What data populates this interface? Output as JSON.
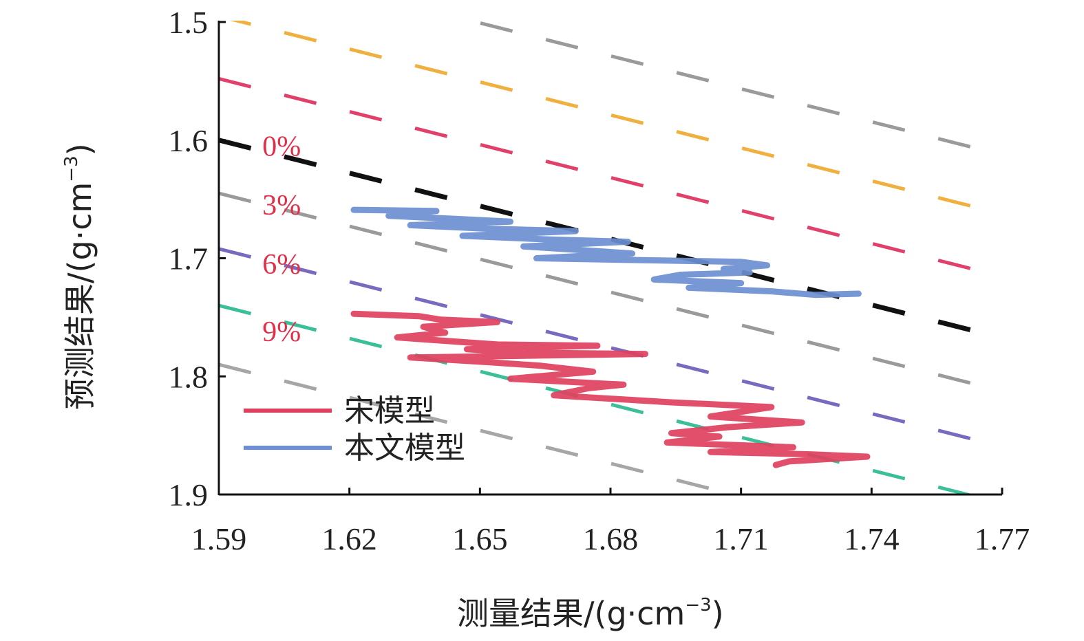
{
  "chart_data": {
    "type": "line",
    "xlabel": "测量结果/(g·cm",
    "xlabel_sup": "−3",
    "xlabel_end": ")",
    "ylabel": "预测结果/(g·cm",
    "ylabel_sup": "−3",
    "ylabel_end": ")",
    "xlim": [
      1.59,
      1.77
    ],
    "ylim": [
      1.5,
      1.9
    ],
    "y_inverted": true,
    "x_ticks": [
      "1.59",
      "1.62",
      "1.65",
      "1.68",
      "1.71",
      "1.74",
      "1.77"
    ],
    "y_ticks": [
      "1.5",
      "1.6",
      "1.7",
      "1.8",
      "1.9"
    ],
    "grid": false,
    "legend_position": "bottom-left",
    "legend": [
      {
        "name": "宋模型",
        "color": "#e0405e"
      },
      {
        "name": "本文模型",
        "color": "#6b8fd0"
      }
    ],
    "reference_labels": [
      {
        "text": "0%",
        "x": 1.6,
        "y": 1.605
      },
      {
        "text": "3%",
        "x": 1.6,
        "y": 1.655
      },
      {
        "text": "6%",
        "x": 1.6,
        "y": 1.705
      },
      {
        "text": "9%",
        "x": 1.6,
        "y": 1.762
      }
    ],
    "reference_lines": [
      {
        "y0": 1.445,
        "color": "#9a9a9a"
      },
      {
        "y0": 1.495,
        "color": "#f0b040"
      },
      {
        "y0": 1.548,
        "color": "#e0406a"
      },
      {
        "y0": 1.6,
        "color": "#111111"
      },
      {
        "y0": 1.645,
        "color": "#9a9a9a"
      },
      {
        "y0": 1.692,
        "color": "#7a6abf"
      },
      {
        "y0": 1.74,
        "color": "#3abf99"
      },
      {
        "y0": 1.79,
        "color": "#a6a6a6"
      }
    ],
    "reference_slope": 0.93,
    "series": [
      {
        "name": "宋模型",
        "color": "#e0405e",
        "points": [
          [
            1.621,
            1.747
          ],
          [
            1.636,
            1.749
          ],
          [
            1.641,
            1.752
          ],
          [
            1.654,
            1.754
          ],
          [
            1.637,
            1.758
          ],
          [
            1.642,
            1.763
          ],
          [
            1.631,
            1.767
          ],
          [
            1.646,
            1.771
          ],
          [
            1.654,
            1.773
          ],
          [
            1.677,
            1.774
          ],
          [
            1.647,
            1.777
          ],
          [
            1.66,
            1.78
          ],
          [
            1.688,
            1.781
          ],
          [
            1.634,
            1.784
          ],
          [
            1.652,
            1.788
          ],
          [
            1.664,
            1.791
          ],
          [
            1.676,
            1.796
          ],
          [
            1.657,
            1.802
          ],
          [
            1.683,
            1.807
          ],
          [
            1.675,
            1.81
          ],
          [
            1.667,
            1.816
          ],
          [
            1.694,
            1.822
          ],
          [
            1.717,
            1.826
          ],
          [
            1.71,
            1.83
          ],
          [
            1.703,
            1.834
          ],
          [
            1.724,
            1.839
          ],
          [
            1.707,
            1.843
          ],
          [
            1.694,
            1.848
          ],
          [
            1.705,
            1.851
          ],
          [
            1.693,
            1.856
          ],
          [
            1.722,
            1.86
          ],
          [
            1.703,
            1.864
          ],
          [
            1.726,
            1.866
          ],
          [
            1.739,
            1.868
          ],
          [
            1.721,
            1.872
          ],
          [
            1.718,
            1.875
          ]
        ]
      },
      {
        "name": "本文模型",
        "color": "#6b8fd0",
        "points": [
          [
            1.621,
            1.659
          ],
          [
            1.64,
            1.66
          ],
          [
            1.629,
            1.664
          ],
          [
            1.646,
            1.667
          ],
          [
            1.657,
            1.669
          ],
          [
            1.634,
            1.672
          ],
          [
            1.652,
            1.675
          ],
          [
            1.672,
            1.677
          ],
          [
            1.646,
            1.681
          ],
          [
            1.665,
            1.684
          ],
          [
            1.684,
            1.686
          ],
          [
            1.66,
            1.69
          ],
          [
            1.673,
            1.693
          ],
          [
            1.685,
            1.696
          ],
          [
            1.663,
            1.7
          ],
          [
            1.693,
            1.702
          ],
          [
            1.71,
            1.703
          ],
          [
            1.716,
            1.706
          ],
          [
            1.706,
            1.709
          ],
          [
            1.712,
            1.712
          ],
          [
            1.696,
            1.714
          ],
          [
            1.69,
            1.718
          ],
          [
            1.71,
            1.721
          ],
          [
            1.698,
            1.725
          ],
          [
            1.717,
            1.728
          ],
          [
            1.727,
            1.731
          ],
          [
            1.737,
            1.73
          ]
        ]
      }
    ]
  }
}
